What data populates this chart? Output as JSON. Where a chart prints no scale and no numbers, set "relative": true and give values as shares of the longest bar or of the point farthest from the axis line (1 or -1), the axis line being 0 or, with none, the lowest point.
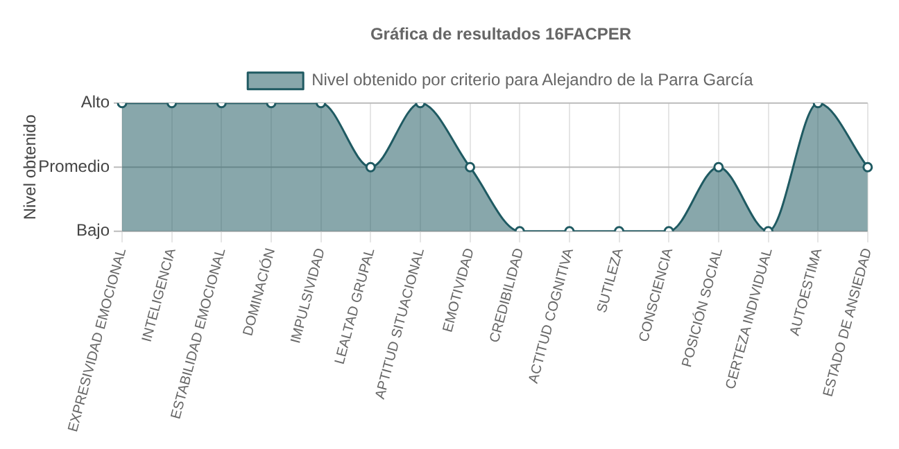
{
  "chart_data": {
    "type": "area",
    "title": "Gráfica de resultados 16FACPER",
    "ylabel": "Nivel obtenido",
    "relative": true,
    "categories": [
      "EXPRESIVIDAD EMOCIONAL",
      "INTELIGENCIA",
      "ESTABILIDAD EMOCIONAL",
      "DOMINACIÓN",
      "IMPULSIVIDAD",
      "LEALTAD GRUPAL",
      "APTITUD SITUACIONAL",
      "EMOTIVIDAD",
      "CREDIBILIDAD",
      "ACTITUD COGNITIVA",
      "SUTILEZA",
      "CONSCIENCIA",
      "POSICIÓN SOCIAL",
      "CERTEZA INDIVIDUAL",
      "AUTOESTIMA",
      "ESTADO DE ANSIEDAD"
    ],
    "series": [
      {
        "name": "Nivel obtenido por criterio para Alejandro de la Parra García",
        "color": "#1f5a62",
        "values": [
          1,
          1,
          1,
          1,
          1,
          0.5,
          1,
          0.5,
          0,
          0,
          0,
          0,
          0.5,
          0,
          1,
          0.5
        ]
      }
    ],
    "ref_lines": [
      {
        "axis": "y",
        "value": 0,
        "label": "Bajo",
        "color": "#bbbbbb"
      },
      {
        "axis": "y",
        "value": 0.5,
        "label": "Promedio",
        "color": "#bbbbbb"
      },
      {
        "axis": "y",
        "value": 1,
        "label": "Alto",
        "color": "#bbbbbb"
      }
    ],
    "grid": "x",
    "legend": "top",
    "marker": "circle"
  }
}
